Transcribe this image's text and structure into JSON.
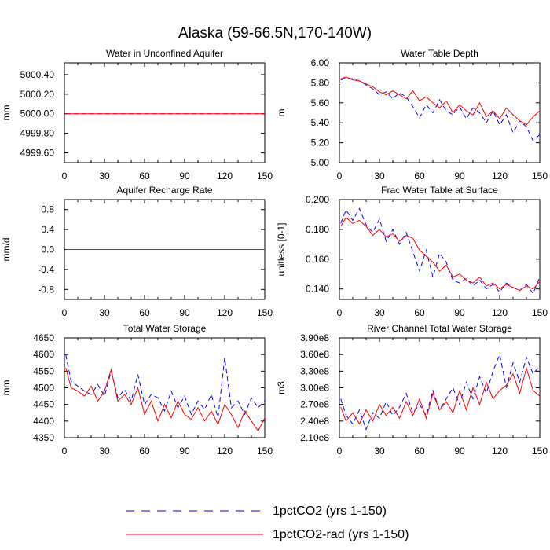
{
  "figure": {
    "title": "Alaska (59-66.5N,170-140W)"
  },
  "legend": {
    "entries": [
      {
        "label": "1pctCO2 (yrs 1-150)",
        "color": "#0000ff",
        "dash": true
      },
      {
        "label": "1pctCO2-rad (yrs 1-150)",
        "color": "#ff0000",
        "dash": false
      }
    ]
  },
  "chart_data": [
    {
      "type": "line",
      "title": "Water in Unconfined Aquifer",
      "ylabel": "mm",
      "xlim": [
        0,
        150
      ],
      "ylim": [
        4999.5,
        5000.52
      ],
      "xticks": [
        0,
        30,
        60,
        90,
        120,
        150
      ],
      "yticks": [
        5000.4,
        5000.2,
        5000.0,
        4999.8,
        4999.6
      ],
      "ytick_labels": [
        "5000.40",
        "5000.20",
        "5000.00",
        "4999.80",
        "4999.60"
      ],
      "series": [
        {
          "name": "1pctCO2 (yrs 1-150)",
          "x": [
            1,
            150
          ],
          "y": [
            5000.0,
            5000.0
          ]
        },
        {
          "name": "1pctCO2-rad (yrs 1-150)",
          "x": [
            1,
            150
          ],
          "y": [
            5000.0,
            5000.0
          ]
        }
      ]
    },
    {
      "type": "line",
      "title": "Water Table Depth",
      "ylabel": "m",
      "xlim": [
        0,
        150
      ],
      "ylim": [
        5.0,
        6.0
      ],
      "xticks": [
        0,
        30,
        60,
        90,
        120,
        150
      ],
      "yticks": [
        6.0,
        5.8,
        5.6,
        5.4,
        5.2,
        5.0
      ],
      "ytick_labels": [
        "6.00",
        "5.80",
        "5.60",
        "5.40",
        "5.20",
        "5.00"
      ],
      "series": [
        {
          "name": "1pctCO2 (yrs 1-150)",
          "x": [
            1,
            5,
            10,
            15,
            20,
            25,
            30,
            35,
            40,
            45,
            50,
            55,
            60,
            65,
            70,
            75,
            80,
            85,
            90,
            95,
            100,
            105,
            110,
            115,
            120,
            125,
            130,
            135,
            140,
            145,
            150
          ],
          "y": [
            5.83,
            5.85,
            5.84,
            5.82,
            5.78,
            5.74,
            5.68,
            5.71,
            5.64,
            5.7,
            5.66,
            5.56,
            5.45,
            5.58,
            5.5,
            5.63,
            5.52,
            5.48,
            5.56,
            5.44,
            5.55,
            5.5,
            5.4,
            5.52,
            5.38,
            5.48,
            5.3,
            5.42,
            5.36,
            5.22,
            5.28
          ]
        },
        {
          "name": "1pctCO2-rad (yrs 1-150)",
          "x": [
            1,
            5,
            10,
            15,
            20,
            25,
            30,
            35,
            40,
            45,
            50,
            55,
            60,
            65,
            70,
            75,
            80,
            85,
            90,
            95,
            100,
            105,
            110,
            115,
            120,
            125,
            130,
            135,
            140,
            145,
            150
          ],
          "y": [
            5.84,
            5.86,
            5.83,
            5.82,
            5.79,
            5.76,
            5.71,
            5.68,
            5.72,
            5.68,
            5.64,
            5.72,
            5.62,
            5.66,
            5.6,
            5.55,
            5.62,
            5.5,
            5.58,
            5.52,
            5.48,
            5.6,
            5.46,
            5.52,
            5.44,
            5.55,
            5.48,
            5.42,
            5.38,
            5.46,
            5.52
          ]
        }
      ]
    },
    {
      "type": "line",
      "title": "Aquifer Recharge Rate",
      "ylabel": "mm/d",
      "xlim": [
        0,
        150
      ],
      "ylim": [
        -1.0,
        1.0
      ],
      "xticks": [
        0,
        30,
        60,
        90,
        120,
        150
      ],
      "yticks": [
        0.8,
        0.4,
        0.0,
        -0.4,
        -0.8
      ],
      "ytick_labels": [
        "0.8",
        "0.4",
        "0.0",
        "-0.4",
        "-0.8"
      ],
      "series": [
        {
          "name": "1pctCO2 (yrs 1-150)",
          "x": [
            1,
            150
          ],
          "y": [
            0.0,
            0.0
          ]
        },
        {
          "name": "1pctCO2-rad (yrs 1-150)",
          "x": [
            1,
            150
          ],
          "y": [
            0.0,
            0.0
          ]
        }
      ]
    },
    {
      "type": "line",
      "title": "Frac Water Table at Surface",
      "ylabel": "unitless [0-1]",
      "xlim": [
        0,
        150
      ],
      "ylim": [
        0.133,
        0.2
      ],
      "xticks": [
        0,
        30,
        60,
        90,
        120,
        150
      ],
      "yticks": [
        0.2,
        0.18,
        0.16,
        0.14
      ],
      "ytick_labels": [
        "0.200",
        "0.180",
        "0.160",
        "0.140"
      ],
      "series": [
        {
          "name": "1pctCO2 (yrs 1-150)",
          "x": [
            1,
            5,
            10,
            15,
            20,
            25,
            30,
            35,
            40,
            45,
            50,
            55,
            60,
            65,
            70,
            75,
            80,
            85,
            90,
            95,
            100,
            105,
            110,
            115,
            120,
            125,
            130,
            135,
            140,
            145,
            150
          ],
          "y": [
            0.184,
            0.193,
            0.186,
            0.194,
            0.183,
            0.178,
            0.187,
            0.172,
            0.18,
            0.17,
            0.178,
            0.165,
            0.152,
            0.166,
            0.148,
            0.164,
            0.158,
            0.146,
            0.144,
            0.147,
            0.142,
            0.146,
            0.14,
            0.143,
            0.138,
            0.144,
            0.141,
            0.139,
            0.143,
            0.137,
            0.148
          ]
        },
        {
          "name": "1pctCO2-rad (yrs 1-150)",
          "x": [
            1,
            5,
            10,
            15,
            20,
            25,
            30,
            35,
            40,
            45,
            50,
            55,
            60,
            65,
            70,
            75,
            80,
            85,
            90,
            95,
            100,
            105,
            110,
            115,
            120,
            125,
            130,
            135,
            140,
            145,
            150
          ],
          "y": [
            0.182,
            0.188,
            0.184,
            0.186,
            0.182,
            0.176,
            0.18,
            0.175,
            0.177,
            0.172,
            0.176,
            0.174,
            0.166,
            0.162,
            0.158,
            0.152,
            0.156,
            0.148,
            0.15,
            0.146,
            0.144,
            0.148,
            0.142,
            0.144,
            0.14,
            0.143,
            0.141,
            0.139,
            0.142,
            0.14,
            0.145
          ]
        }
      ]
    },
    {
      "type": "line",
      "title": "Total Water Storage",
      "ylabel": "mm",
      "xlim": [
        0,
        150
      ],
      "ylim": [
        4350,
        4650
      ],
      "xticks": [
        0,
        30,
        60,
        90,
        120,
        150
      ],
      "yticks": [
        4650,
        4600,
        4550,
        4500,
        4450,
        4400,
        4350
      ],
      "ytick_labels": [
        "4650",
        "4600",
        "4550",
        "4500",
        "4450",
        "4400",
        "4350"
      ],
      "series": [
        {
          "name": "1pctCO2 (yrs 1-150)",
          "x": [
            1,
            5,
            10,
            15,
            20,
            25,
            30,
            35,
            40,
            45,
            50,
            55,
            60,
            65,
            70,
            75,
            80,
            85,
            90,
            95,
            100,
            105,
            110,
            115,
            120,
            125,
            130,
            135,
            140,
            145,
            150
          ],
          "y": [
            4600,
            4520,
            4505,
            4490,
            4480,
            4510,
            4475,
            4550,
            4470,
            4495,
            4460,
            4540,
            4450,
            4480,
            4470,
            4430,
            4490,
            4440,
            4475,
            4420,
            4460,
            4435,
            4480,
            4410,
            4590,
            4440,
            4460,
            4420,
            4470,
            4440,
            4460
          ]
        },
        {
          "name": "1pctCO2-rad (yrs 1-150)",
          "x": [
            1,
            5,
            10,
            15,
            20,
            25,
            30,
            35,
            40,
            45,
            50,
            55,
            60,
            65,
            70,
            75,
            80,
            85,
            90,
            95,
            100,
            105,
            110,
            115,
            120,
            125,
            130,
            135,
            140,
            145,
            150
          ],
          "y": [
            4560,
            4500,
            4490,
            4475,
            4505,
            4460,
            4490,
            4555,
            4460,
            4480,
            4450,
            4500,
            4420,
            4460,
            4400,
            4450,
            4410,
            4460,
            4420,
            4405,
            4440,
            4400,
            4430,
            4390,
            4450,
            4420,
            4380,
            4430,
            4400,
            4370,
            4410
          ]
        }
      ]
    },
    {
      "type": "line",
      "title": "River Channel Total Water Storage",
      "ylabel": "m3",
      "xlim": [
        0,
        150
      ],
      "ylim": [
        210000000.0,
        390000000.0
      ],
      "xticks": [
        0,
        30,
        60,
        90,
        120,
        150
      ],
      "yticks": [
        390000000.0,
        360000000.0,
        330000000.0,
        300000000.0,
        270000000.0,
        240000000.0,
        210000000.0
      ],
      "ytick_labels": [
        "3.90e8",
        "3.60e8",
        "3.30e8",
        "3.00e8",
        "2.70e8",
        "2.40e8",
        "2.10e8"
      ],
      "series": [
        {
          "name": "1pctCO2 (yrs 1-150)",
          "x": [
            1,
            5,
            10,
            15,
            20,
            25,
            30,
            35,
            40,
            45,
            50,
            55,
            60,
            65,
            70,
            75,
            80,
            85,
            90,
            95,
            100,
            105,
            110,
            115,
            120,
            125,
            130,
            135,
            140,
            145,
            150
          ],
          "y": [
            280000000.0,
            250000000.0,
            235000000.0,
            260000000.0,
            225000000.0,
            255000000.0,
            245000000.0,
            275000000.0,
            250000000.0,
            265000000.0,
            290000000.0,
            255000000.0,
            270000000.0,
            250000000.0,
            295000000.0,
            260000000.0,
            280000000.0,
            300000000.0,
            270000000.0,
            310000000.0,
            280000000.0,
            320000000.0,
            290000000.0,
            330000000.0,
            360000000.0,
            300000000.0,
            345000000.0,
            310000000.0,
            355000000.0,
            325000000.0,
            340000000.0
          ]
        },
        {
          "name": "1pctCO2-rad (yrs 1-150)",
          "x": [
            1,
            5,
            10,
            15,
            20,
            25,
            30,
            35,
            40,
            45,
            50,
            55,
            60,
            65,
            70,
            75,
            80,
            85,
            90,
            95,
            100,
            105,
            110,
            115,
            120,
            125,
            130,
            135,
            140,
            145,
            150
          ],
          "y": [
            265000000.0,
            240000000.0,
            255000000.0,
            235000000.0,
            260000000.0,
            240000000.0,
            270000000.0,
            250000000.0,
            265000000.0,
            245000000.0,
            275000000.0,
            250000000.0,
            280000000.0,
            245000000.0,
            290000000.0,
            260000000.0,
            275000000.0,
            255000000.0,
            295000000.0,
            260000000.0,
            300000000.0,
            270000000.0,
            310000000.0,
            280000000.0,
            295000000.0,
            305000000.0,
            325000000.0,
            290000000.0,
            335000000.0,
            295000000.0,
            285000000.0
          ]
        }
      ]
    }
  ]
}
